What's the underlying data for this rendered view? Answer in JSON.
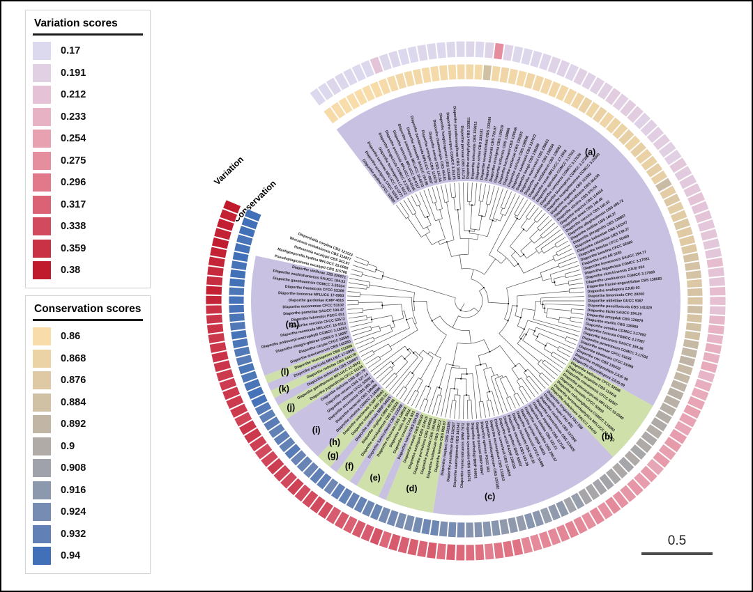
{
  "figure": {
    "background": "#ffffff",
    "border_color": "#000000"
  },
  "legends": {
    "variation": {
      "title": "Variation scores",
      "entries": [
        {
          "value": "0.17",
          "color": "#dcd9ee"
        },
        {
          "value": "0.191",
          "color": "#e1cfe3"
        },
        {
          "value": "0.212",
          "color": "#e5c2d5"
        },
        {
          "value": "0.233",
          "color": "#e7b2c3"
        },
        {
          "value": "0.254",
          "color": "#e7a1b1"
        },
        {
          "value": "0.275",
          "color": "#e58e9e"
        },
        {
          "value": "0.296",
          "color": "#e1798a"
        },
        {
          "value": "0.317",
          "color": "#da6274"
        },
        {
          "value": "0.338",
          "color": "#d24a5e"
        },
        {
          "value": "0.359",
          "color": "#c93145"
        },
        {
          "value": "0.38",
          "color": "#c01a2d"
        }
      ]
    },
    "conservation": {
      "title": "Conservation scores",
      "entries": [
        {
          "value": "0.86",
          "color": "#f8dcaa"
        },
        {
          "value": "0.868",
          "color": "#ecd3a6"
        },
        {
          "value": "0.876",
          "color": "#dec9a4"
        },
        {
          "value": "0.884",
          "color": "#d0c0a4"
        },
        {
          "value": "0.892",
          "color": "#c1b6a5"
        },
        {
          "value": "0.9",
          "color": "#b1aba7"
        },
        {
          "value": "0.908",
          "color": "#a0a2ab"
        },
        {
          "value": "0.916",
          "color": "#8c98ae"
        },
        {
          "value": "0.924",
          "color": "#778cb2"
        },
        {
          "value": "0.932",
          "color": "#6080b6"
        },
        {
          "value": "0.94",
          "color": "#4170b8"
        }
      ]
    }
  },
  "rings": {
    "outer_label": "Variation",
    "inner_label": "Conservation"
  },
  "scale_bar": {
    "label": "0.5"
  },
  "chart_data": {
    "type": "circular-phylogenetic-tree",
    "n_tips": 152,
    "variation_range": [
      0.17,
      0.38
    ],
    "conservation_range": [
      0.86,
      0.94
    ],
    "band_colors": {
      "lavender": "#c8c1e2",
      "green": "#cfe0ab",
      "none": "none"
    },
    "band_segments": [
      {
        "from": 0,
        "to": 71,
        "c": "lavender"
      },
      {
        "from": 72,
        "to": 79,
        "c": "green"
      },
      {
        "from": 80,
        "to": 103,
        "c": "lavender"
      },
      {
        "from": 104,
        "to": 109,
        "c": "green"
      },
      {
        "from": 110,
        "to": 110,
        "c": "lavender"
      },
      {
        "from": 111,
        "to": 113,
        "c": "green"
      },
      {
        "from": 114,
        "to": 114,
        "c": "lavender"
      },
      {
        "from": 115,
        "to": 116,
        "c": "green"
      },
      {
        "from": 117,
        "to": 117,
        "c": "lavender"
      },
      {
        "from": 118,
        "to": 119,
        "c": "green"
      },
      {
        "from": 120,
        "to": 125,
        "c": "lavender"
      },
      {
        "from": 126,
        "to": 127,
        "c": "green"
      },
      {
        "from": 128,
        "to": 128,
        "c": "lavender"
      },
      {
        "from": 129,
        "to": 129,
        "c": "green"
      },
      {
        "from": 130,
        "to": 130,
        "c": "lavender"
      },
      {
        "from": 131,
        "to": 131,
        "c": "green"
      },
      {
        "from": 132,
        "to": 146,
        "c": "lavender"
      },
      {
        "from": 147,
        "to": 151,
        "c": "none"
      }
    ],
    "clade_labels": [
      {
        "label": "(a)",
        "angle": 40,
        "r": 278
      },
      {
        "label": "(b)",
        "angle": 134,
        "r": 282
      },
      {
        "label": "(c)",
        "angle": 173,
        "r": 284
      },
      {
        "label": "(d)",
        "angle": 196,
        "r": 281
      },
      {
        "label": "(e)",
        "angle": 207,
        "r": 286
      },
      {
        "label": "(f)",
        "angle": 215,
        "r": 291
      },
      {
        "label": "(g)",
        "angle": 220.5,
        "r": 293
      },
      {
        "label": "(h)",
        "angle": 222.7,
        "r": 277
      },
      {
        "label": "(i)",
        "angle": 229,
        "r": 284
      },
      {
        "label": "(j)",
        "angle": 238.5,
        "r": 294
      },
      {
        "label": "(k)",
        "angle": 244,
        "r": 290
      },
      {
        "label": "(l)",
        "angle": 248.4,
        "r": 279
      },
      {
        "label": "(m)",
        "angle": 262,
        "r": 251
      }
    ],
    "variation": {
      "segments": [
        {
          "from": 0,
          "to": 17,
          "v0": 0.171,
          "v1": 0.176,
          "noise": 0.004
        },
        {
          "from": 18,
          "to": 30,
          "v0": 0.175,
          "v1": 0.185,
          "noise": 0.006
        },
        {
          "from": 31,
          "to": 55,
          "v0": 0.185,
          "v1": 0.213,
          "noise": 0.008
        },
        {
          "from": 56,
          "to": 79,
          "v0": 0.214,
          "v1": 0.262,
          "noise": 0.01
        },
        {
          "from": 80,
          "to": 103,
          "v0": 0.262,
          "v1": 0.313,
          "noise": 0.01
        },
        {
          "from": 104,
          "to": 130,
          "v0": 0.313,
          "v1": 0.352,
          "noise": 0.01
        },
        {
          "from": 131,
          "to": 151,
          "v0": 0.352,
          "v1": 0.38,
          "noise": 0.007
        }
      ],
      "outliers": [
        {
          "tip": 7,
          "value": 0.208
        },
        {
          "tip": 20,
          "value": 0.276
        },
        {
          "tip": 150,
          "value": 0.374
        },
        {
          "tip": 151,
          "value": 0.38
        }
      ]
    },
    "conservation": {
      "segments": [
        {
          "from": 0,
          "to": 30,
          "v0": 0.861,
          "v1": 0.866,
          "noise": 0.002
        },
        {
          "from": 31,
          "to": 55,
          "v0": 0.866,
          "v1": 0.88,
          "noise": 0.003
        },
        {
          "from": 56,
          "to": 79,
          "v0": 0.88,
          "v1": 0.904,
          "noise": 0.004
        },
        {
          "from": 80,
          "to": 103,
          "v0": 0.904,
          "v1": 0.924,
          "noise": 0.004
        },
        {
          "from": 104,
          "to": 130,
          "v0": 0.924,
          "v1": 0.936,
          "noise": 0.003
        },
        {
          "from": 131,
          "to": 151,
          "v0": 0.936,
          "v1": 0.94,
          "noise": 0.002
        }
      ],
      "outliers": [
        {
          "tip": 19,
          "value": 0.884
        },
        {
          "tip": 44,
          "value": 0.887
        },
        {
          "tip": 151,
          "value": 0.94
        }
      ]
    },
    "taxa": [
      "Diaporthe padina CFCC 52590",
      "Diaporthe acerigena CFCC 52554",
      "Diaporthe tectonae MFLUCC 12-0777",
      "Diaporthe tectonigena LC 6512",
      "Diaporthe longicicola CGMCC 3.17957",
      "Diaporthe pescicola MFLUCC 16-0105",
      "Diaporthe taoicola MFLUCC 16-0117",
      "Diaporthe siamensis MFLUCC 10-0573",
      "Diaporthe osmanthi SAUCC 194.86",
      "Diaporthe pandanicola MFLUCC 17-0607",
      "Diaporthe arengae CBS 114979",
      "Diaporthe arecae CBS 161.64",
      "Diaporthe chamaeropis CBS 454.81",
      "Diaporthe hongkongensis CBS 115448",
      "Diaporthe lithocarpus CGMCC 3.15175",
      "Diaporthe pseudomangiferae CBS 101339",
      "Diaporthe perseae CBS 151.73",
      "Diaporthe endophytica CBS 133811",
      "Diaporthe infecunda CBS 133812",
      "Diaporthe schini CBS 133181",
      "Diaporthe terebinthifolii CBS 133180",
      "Diaporthe anacardii CBS 720.97",
      "Diaporthe musigena CBS 129519",
      "Diaporthe tulliensis CBS 138866",
      "Diaporthe kochmanii CBS 139548",
      "Diaporthe ueckerae CBS 139283",
      "Diaporthe miriciae CBS 138596",
      "Diaporthe sackstonii CBS 137972",
      "Diaporthe kongii CBS 138289",
      "Diaporthe masirevicii CBS 138601",
      "Diaporthe serafiniae CBS 138594",
      "Diaporthe middletonii CBS 138902",
      "Diaporthe rosae MFLUCC 17-2658",
      "Diaporthe apiculata CGMCC 3.17533",
      "Diaporthe compacta CGMCC 3.17536",
      "Diaporthe biconispora CGMCC 3.17252",
      "Diaporthe huangshanensis CGMCC 3.20090",
      "Diaporthe angelicae CBS 111592",
      "Diaporthe subordinaria CBS 464.90",
      "Diaporthe stictica CBS 370.54",
      "Diaporthe impulsa CBS 114434",
      "Diaporthe alnea CBS 146.46",
      "Diaporthe vaccinii CBS 160.32",
      "Diaporthe alleghaniensis CBS 495.72",
      "Diaporthe neilliae CBS 144.27",
      "Diaporthe phragmitis CBS 138897",
      "Diaporthe bohemiae CBS 143347",
      "Diaporthe celastrina CBS 139.27",
      "Diaporthe betulae CFCC 50469",
      "Diaporthe betulina CFCC 52560",
      "Diaporthe eres AR 5193",
      "Diaporthe henanensis SAUCC 194.77",
      "Diaporthe biguttulata CGMCC 3.17081",
      "Diaporthe citrichinensis ZJUD 034",
      "Diaporthe unshiuensis CGMCC 3.17569",
      "Diaporthe fraxini-angustifoliae CBS 138581",
      "Diaporthe ovalispora ZJUD 93",
      "Diaporthe limonicola CPC 28200",
      "Diaporthe millettiae GUCC 9167",
      "Diaporthe passifloricola CBS 141329",
      "Diaporthe litchii SAUCC 194.29",
      "Diaporthe amygdali CBS 126679",
      "Diaporthe sterilis CBS 136969",
      "Diaporthe ovoidea CGMCC 3.17092",
      "Diaporthe fusicola CGMCC 3.17087",
      "Diaporthe lutescens SAUCC 194.36",
      "Diaporthe penetriteum CGMCC 3.17532",
      "Diaporthe sennae CFCC 51636",
      "Diaporthe tibetensis CFCC 51999",
      "Diaporthe citri CBS 135422",
      "Diaporthe multigutullata ZJUD 98",
      "Diaporthe discoidispora ZJUD 89",
      "Diaporthe kadsurae CFCC 52586",
      "Diaporthe ampelina CBS 114016",
      "Diaporthe chensiensis CFCC 52567",
      "Diaporthe pterocarpicola MFLUCC 10-0580",
      "Diaporthe borealis CFCC 52563",
      "Diaporthe xishuangbanica CGMCC 3.18282",
      "Diaporthe tectonendophytica MFLUCC 13-0471",
      "Diaporthe hubeiensis SAUCC 194.63",
      "Diaporthe longicolla FAU 599",
      "Diaporthe sojae FAU 635",
      "Diaporthe caulivora CBS 127268",
      "Diaporthe phaseolorum CBS 113425",
      "Diaporthe aspalathi CBS 117169",
      "Diaporthe batatas CBS 122.21",
      "Diaporthe sclerotioides CBS 296.67",
      "Diaporthe gulyae BRIP 54025",
      "Diaporthe sambucusii CFCC 51986",
      "Diaporthe helianthi CBS 592.81",
      "Diaporthe stewartii CBS 193.36",
      "Diaporthe goulteri BRIP 55657",
      "Diaporthe arctii DAOM 226030",
      "Diaporthe convolvuli CBS 124654",
      "Diaporthe inconspicua CBS 133813",
      "Diaporthe raonikayaporum CBS 133182",
      "Diaporthe spinosa PSCG 383",
      "Diaporthe pascoei BRIP 54847",
      "Diaporthe nothofagi BRIP 54801",
      "Diaporthe cynaroidis CBS 122676",
      "Diaporthe myracrodruonis URM 7972",
      "Diaporthe caatingaensis CBS 141542",
      "Diaporthe passiflorae CBS 132527",
      "Diaporthe mayteni CBS 133185",
      "Diaporthe heveae CBS 852.97",
      "Diaporthe lusitanicae CBS 123212",
      "Diaporthe pustulata CBS 109784",
      "Diaporthe perniciosa CBS 124030",
      "Diaporthe ambigua CBS 114015",
      "Diaporthe woodii CBS 558.93",
      "Diaporthe toxica CBS 534.93",
      "Diaporthe crousii CAA 823",
      "Diaporthe rudis AR 3422",
      "Diaporthe rhusicola CBS 129528",
      "Diaporthe foeniculacea CBS 123208",
      "Diaporthe eucalyptorum CBS 132525",
      "Diaporthe virgiliae CMW 40748",
      "Diaporthe salicicola BRIP 54825",
      "Diaporthe infertilis CBS 230.52",
      "Diaporthe subclavata ICMP 20663",
      "Diaporthe velutina CGMCC 3.18286",
      "Diaporthe neoarctii CBS 109490",
      "Diaporthe oncostoma CBS 589.78",
      "Diaporthe robiniae CFCC 52582",
      "Diaporthe vexans CBS 127.14",
      "Diaporthe melonis CBS 507.78",
      "Diaporthe juglandicola CFCC 51134",
      "Diaporthe garethjonesii MFLUCC 12-0542",
      "Diaporthe asheicola CBS 136967",
      "Diaporthe nebulae CBS 144178",
      "Diaporthe acericola MFLUCC 17-0956",
      "Diaporthe leucospermi CBS 111980",
      "Diaporthe araucanorum CBS 145285",
      "Diaporthe caryae CFCC 52565",
      "Diaporthe eleagni-glabrae CGMCC 3.18287",
      "Diaporthe podocarpi-macrophylli CGMCC 3.18281",
      "Diaporthe momicola MFLUCC 16-0113",
      "Diaporthe cercidis CFCC 52572",
      "Diaporthe fulvicolor PSCG 051",
      "Diaporthe pometiae SAUCC 194.47",
      "Diaporthe eucommiae CFCC 53102",
      "Diaporthe gardeniae ICMP 4816",
      "Diaporthe lonicerae MFLUCC 17-0963",
      "Diaporthe fraxinicola CFCC 53109",
      "Diaporthe ganzhouensis CGMCC 3.20104",
      "Diaporthe wuzhishanensis SAUCC 194.33",
      "Diaporthe viniferae JZB 320071",
      "Pseudoplagiostoma eucalypti CBS 115788",
      "Mastigosporella hyalina MFLUCC 15-0068",
      "Harknessia eucalypti CBS 342.97",
      "Wuestneia molokaiensis CBS 114877",
      "Diaporthella corylina CBS 121124"
    ]
  }
}
